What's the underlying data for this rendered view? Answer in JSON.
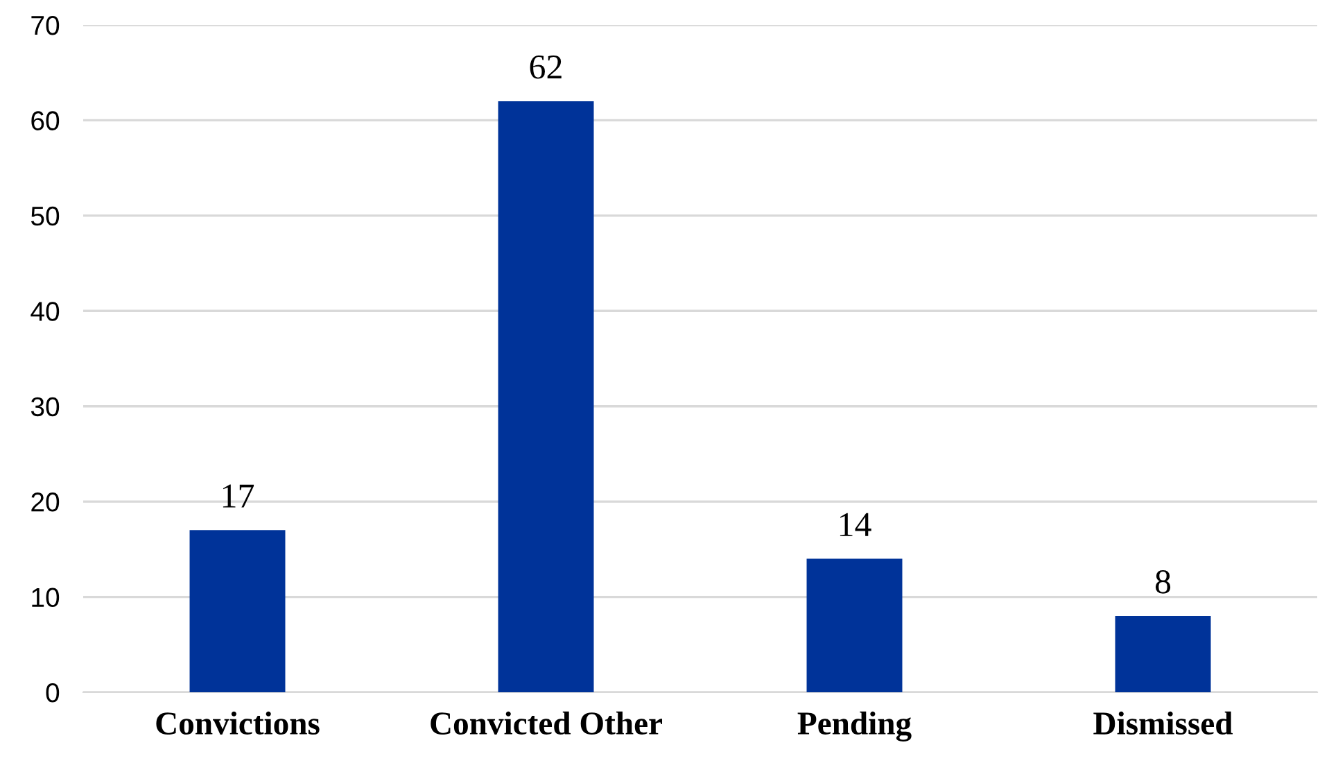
{
  "chart_data": {
    "type": "bar",
    "categories": [
      "Convictions",
      "Convicted Other",
      "Pending",
      "Dismissed"
    ],
    "values": [
      17,
      62,
      14,
      8
    ],
    "color": "#003399",
    "ylim": [
      0,
      70
    ],
    "yticks": [
      0,
      10,
      20,
      30,
      40,
      50,
      60,
      70
    ],
    "grid": "y",
    "data_labels": true,
    "legend": false
  }
}
